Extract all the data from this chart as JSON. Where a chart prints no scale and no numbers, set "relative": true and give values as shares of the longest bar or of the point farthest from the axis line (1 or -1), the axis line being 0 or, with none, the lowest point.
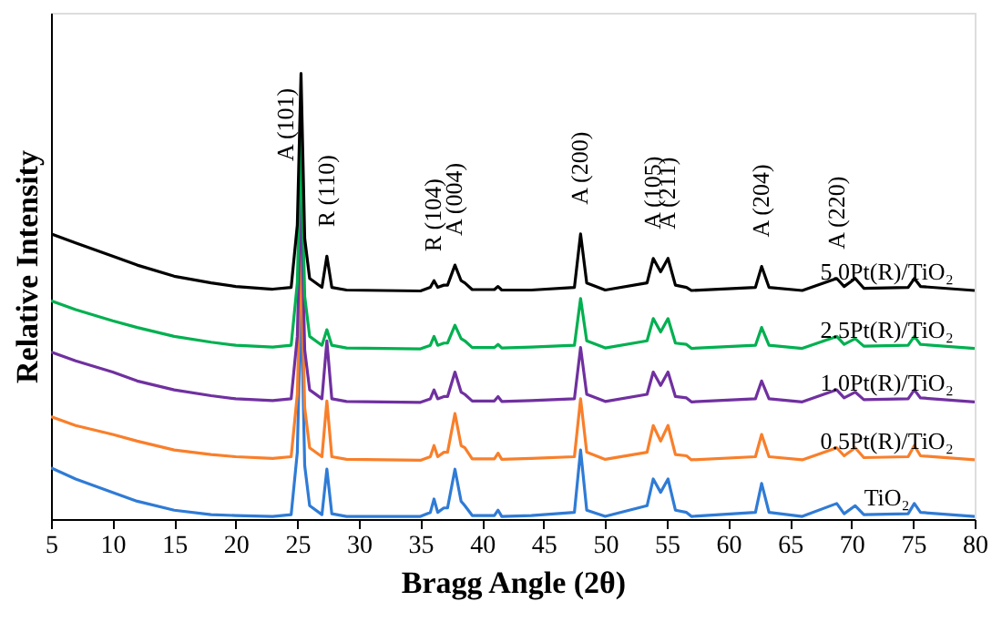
{
  "chart_data": {
    "type": "line",
    "relative": true,
    "xlabel": "Bragg Angle (2θ)",
    "ylabel": "Relative Intensity",
    "xlim": [
      5,
      80
    ],
    "xticks": [
      5,
      10,
      15,
      20,
      25,
      30,
      35,
      40,
      45,
      50,
      55,
      60,
      65,
      70,
      75,
      80
    ],
    "x": [
      5,
      7,
      10,
      12,
      15,
      18,
      20,
      23,
      24.5,
      25.0,
      25.3,
      25.6,
      26,
      27.0,
      27.4,
      27.8,
      29,
      35,
      35.8,
      36.1,
      36.4,
      36.9,
      37.2,
      37.8,
      38.3,
      38.6,
      39.2,
      41.0,
      41.3,
      41.6,
      44,
      47.5,
      48.0,
      48.5,
      50,
      53.4,
      53.9,
      54.5,
      55.1,
      55.7,
      56.6,
      57,
      62.2,
      62.7,
      63.3,
      66,
      68.8,
      69.4,
      70.3,
      71,
      74.6,
      75.1,
      75.6,
      80
    ],
    "series": [
      {
        "name": "TiO₂",
        "color": "#2f7bd6",
        "values": [
          0.115,
          0.09,
          0.06,
          0.04,
          0.02,
          0.01,
          0.008,
          0.006,
          0.01,
          0.15,
          0.5,
          0.12,
          0.03,
          0.01,
          0.112,
          0.012,
          0.006,
          0.006,
          0.015,
          0.045,
          0.015,
          0.025,
          0.025,
          0.112,
          0.04,
          0.03,
          0.008,
          0.008,
          0.02,
          0.006,
          0.008,
          0.015,
          0.155,
          0.02,
          0.006,
          0.03,
          0.09,
          0.06,
          0.09,
          0.02,
          0.015,
          0.006,
          0.015,
          0.08,
          0.015,
          0.006,
          0.035,
          0.012,
          0.03,
          0.01,
          0.012,
          0.035,
          0.015,
          0.006
        ]
      },
      {
        "name": "0.5Pt(R)/TiO₂",
        "color": "#f97f2a",
        "values": [
          0.23,
          0.21,
          0.19,
          0.175,
          0.155,
          0.145,
          0.14,
          0.136,
          0.14,
          0.28,
          0.61,
          0.25,
          0.16,
          0.14,
          0.265,
          0.14,
          0.134,
          0.132,
          0.14,
          0.165,
          0.14,
          0.15,
          0.15,
          0.237,
          0.165,
          0.16,
          0.135,
          0.135,
          0.148,
          0.134,
          0.136,
          0.14,
          0.27,
          0.15,
          0.134,
          0.15,
          0.21,
          0.175,
          0.21,
          0.145,
          0.142,
          0.133,
          0.14,
          0.19,
          0.14,
          0.133,
          0.16,
          0.142,
          0.16,
          0.138,
          0.14,
          0.165,
          0.142,
          0.133
        ]
      },
      {
        "name": "1.0Pt(R)/TiO₂",
        "color": "#7030a0",
        "values": [
          0.375,
          0.355,
          0.33,
          0.31,
          0.29,
          0.277,
          0.27,
          0.266,
          0.27,
          0.41,
          0.74,
          0.38,
          0.29,
          0.27,
          0.4,
          0.27,
          0.264,
          0.262,
          0.27,
          0.29,
          0.27,
          0.275,
          0.275,
          0.33,
          0.285,
          0.28,
          0.265,
          0.265,
          0.275,
          0.264,
          0.266,
          0.27,
          0.385,
          0.28,
          0.264,
          0.28,
          0.33,
          0.3,
          0.33,
          0.275,
          0.272,
          0.263,
          0.27,
          0.31,
          0.27,
          0.263,
          0.29,
          0.272,
          0.285,
          0.268,
          0.27,
          0.29,
          0.272,
          0.263
        ]
      },
      {
        "name": "2.5Pt(R)/TiO₂",
        "color": "#00b050",
        "values": [
          0.49,
          0.47,
          0.445,
          0.43,
          0.41,
          0.397,
          0.39,
          0.386,
          0.39,
          0.53,
          0.86,
          0.5,
          0.41,
          0.39,
          0.425,
          0.39,
          0.384,
          0.382,
          0.39,
          0.41,
          0.39,
          0.395,
          0.395,
          0.435,
          0.405,
          0.4,
          0.385,
          0.385,
          0.392,
          0.384,
          0.386,
          0.39,
          0.495,
          0.4,
          0.384,
          0.4,
          0.45,
          0.42,
          0.45,
          0.395,
          0.392,
          0.383,
          0.39,
          0.43,
          0.39,
          0.383,
          0.41,
          0.392,
          0.405,
          0.388,
          0.39,
          0.41,
          0.392,
          0.383
        ]
      },
      {
        "name": "5.0Pt(R)/TiO₂",
        "color": "#000000",
        "values": [
          0.64,
          0.62,
          0.59,
          0.57,
          0.545,
          0.53,
          0.522,
          0.516,
          0.52,
          0.66,
          1.0,
          0.63,
          0.54,
          0.52,
          0.59,
          0.52,
          0.514,
          0.512,
          0.52,
          0.535,
          0.52,
          0.525,
          0.525,
          0.57,
          0.535,
          0.53,
          0.515,
          0.515,
          0.522,
          0.514,
          0.514,
          0.52,
          0.64,
          0.53,
          0.514,
          0.53,
          0.585,
          0.555,
          0.585,
          0.525,
          0.52,
          0.513,
          0.52,
          0.567,
          0.52,
          0.513,
          0.54,
          0.522,
          0.54,
          0.518,
          0.52,
          0.54,
          0.522,
          0.513
        ]
      }
    ],
    "annotations": [
      {
        "text": "A (101)",
        "x": 25.3,
        "y": 1.0
      },
      {
        "text": "R (110)",
        "x": 27.4,
        "y": 0.59
      },
      {
        "text": "R (104)",
        "x": 36.1,
        "y": 0.535
      },
      {
        "text": "A (004)",
        "x": 37.8,
        "y": 0.57
      },
      {
        "text": "A (200)",
        "x": 48.0,
        "y": 0.64
      },
      {
        "text": "A (105)",
        "x": 53.9,
        "y": 0.585
      },
      {
        "text": "A (211)",
        "x": 55.1,
        "y": 0.585
      },
      {
        "text": "A (204)",
        "x": 62.7,
        "y": 0.567
      },
      {
        "text": "A (220)",
        "x": 68.8,
        "y": 0.54
      }
    ]
  }
}
